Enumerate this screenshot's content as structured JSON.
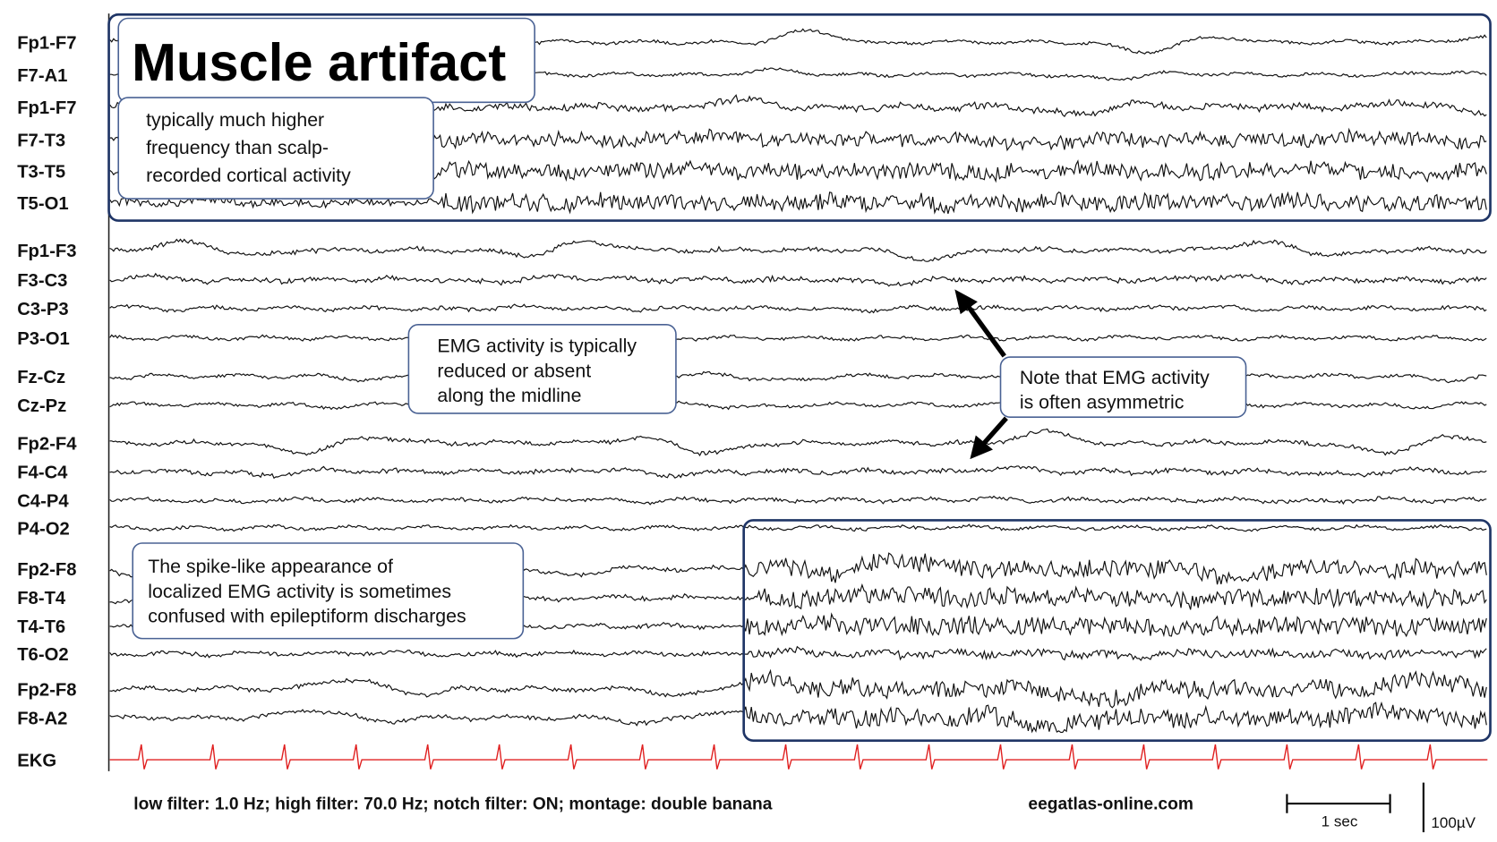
{
  "title": "Muscle artifact",
  "channels": [
    "Fp1-F7",
    "F7-A1",
    "Fp1-F7",
    "F7-T3",
    "T3-T5",
    "T5-O1",
    "Fp1-F3",
    "F3-C3",
    "C3-P3",
    "P3-O1",
    "Fz-Cz",
    "Cz-Pz",
    "Fp2-F4",
    "F4-C4",
    "C4-P4",
    "P4-O2",
    "Fp2-F8",
    "F8-T4",
    "T4-T6",
    "T6-O2",
    "Fp2-F8",
    "F8-A2",
    "EKG"
  ],
  "annotations": [
    [
      "typically much higher",
      "frequency than scalp-",
      "recorded cortical activity"
    ],
    [
      "EMG activity is typically",
      "reduced or absent",
      "along the midline"
    ],
    [
      "Note that EMG activity",
      "is often asymmetric"
    ],
    [
      "The spike-like appearance of",
      "localized EMG activity is sometimes",
      "confused with epileptiform discharges"
    ]
  ],
  "footer": {
    "filters": "low filter: 1.0 Hz; high filter: 70.0 Hz; notch filter: ON; montage: double banana",
    "site": "eegatlas-online.com",
    "time_scale": "1 sec",
    "amplitude_scale": "100µV"
  }
}
